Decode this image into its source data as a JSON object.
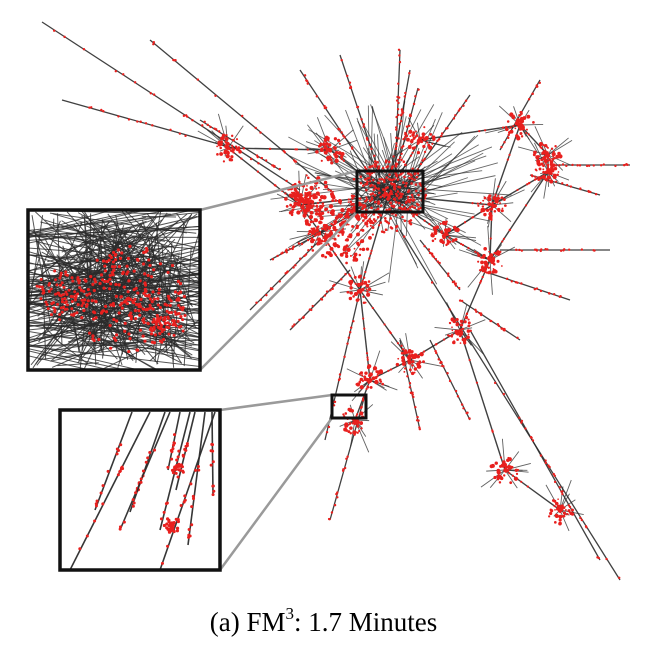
{
  "caption": {
    "prefix": "(a)  FM",
    "superscript": "3",
    "suffix": ": 1.7 Minutes"
  },
  "colors": {
    "edge": "#2b2b2b",
    "node": "#e8201e",
    "inset_border": "#111111",
    "connector": "#9a9a9a",
    "background": "#ffffff"
  }
}
